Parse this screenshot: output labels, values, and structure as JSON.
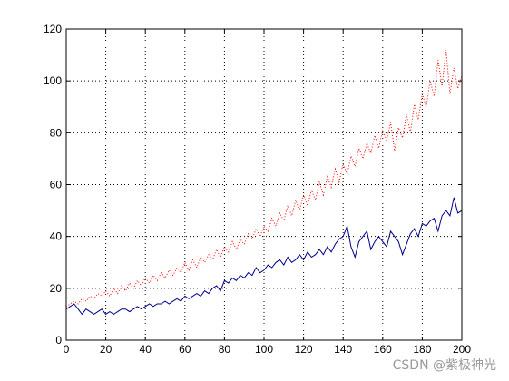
{
  "watermark": "CSDN @紫极神光",
  "chart_data": {
    "type": "line",
    "title": "",
    "xlabel": "",
    "ylabel": "",
    "xlim": [
      0,
      200
    ],
    "ylim": [
      0,
      120
    ],
    "xticks": [
      0,
      20,
      40,
      60,
      80,
      100,
      120,
      140,
      160,
      180,
      200
    ],
    "yticks": [
      0,
      20,
      40,
      60,
      80,
      100,
      120
    ],
    "grid": true,
    "series": [
      {
        "style": "dotted",
        "color": "#ff0000",
        "x": [
          0,
          2,
          4,
          6,
          8,
          10,
          12,
          14,
          16,
          18,
          20,
          22,
          24,
          26,
          28,
          30,
          32,
          34,
          36,
          38,
          40,
          42,
          44,
          46,
          48,
          50,
          52,
          54,
          56,
          58,
          60,
          62,
          64,
          66,
          68,
          70,
          72,
          74,
          76,
          78,
          80,
          82,
          84,
          86,
          88,
          90,
          92,
          94,
          96,
          98,
          100,
          102,
          104,
          106,
          108,
          110,
          112,
          114,
          116,
          118,
          120,
          122,
          124,
          126,
          128,
          130,
          132,
          134,
          136,
          138,
          140,
          142,
          144,
          146,
          148,
          150,
          152,
          154,
          156,
          158,
          160,
          162,
          164,
          166,
          168,
          170,
          172,
          174,
          176,
          178,
          180,
          182,
          184,
          186,
          188,
          190,
          192,
          194,
          196,
          198,
          200
        ],
        "y": [
          13,
          14,
          15,
          14,
          16,
          15,
          17,
          16,
          18,
          17,
          19,
          17,
          20,
          18,
          21,
          19,
          22,
          20,
          23,
          21,
          24,
          22,
          25,
          23,
          26,
          24,
          27,
          25,
          28,
          26,
          30,
          27,
          31,
          28,
          32,
          30,
          33,
          31,
          35,
          32,
          36,
          34,
          38,
          35,
          39,
          37,
          41,
          39,
          43,
          40,
          44,
          42,
          47,
          44,
          49,
          46,
          52,
          48,
          54,
          50,
          56,
          52,
          58,
          54,
          61,
          56,
          63,
          59,
          66,
          61,
          68,
          64,
          71,
          67,
          74,
          70,
          76,
          72,
          79,
          74,
          81,
          77,
          84,
          73,
          82,
          78,
          87,
          80,
          91,
          85,
          95,
          90,
          100,
          94,
          108,
          98,
          112,
          95,
          105,
          97,
          102
        ]
      },
      {
        "style": "solid",
        "color": "#00008b",
        "x": [
          0,
          2,
          4,
          6,
          8,
          10,
          12,
          14,
          16,
          18,
          20,
          22,
          24,
          26,
          28,
          30,
          32,
          34,
          36,
          38,
          40,
          42,
          44,
          46,
          48,
          50,
          52,
          54,
          56,
          58,
          60,
          62,
          64,
          66,
          68,
          70,
          72,
          74,
          76,
          78,
          80,
          82,
          84,
          86,
          88,
          90,
          92,
          94,
          96,
          98,
          100,
          102,
          104,
          106,
          108,
          110,
          112,
          114,
          116,
          118,
          120,
          122,
          124,
          126,
          128,
          130,
          132,
          134,
          136,
          138,
          140,
          142,
          144,
          146,
          148,
          150,
          152,
          154,
          156,
          158,
          160,
          162,
          164,
          166,
          168,
          170,
          172,
          174,
          176,
          178,
          180,
          182,
          184,
          186,
          188,
          190,
          192,
          194,
          196,
          198,
          200
        ],
        "y": [
          12,
          13,
          14,
          12,
          10,
          12,
          11,
          10,
          11,
          12,
          10,
          11,
          10,
          11,
          12,
          12,
          11,
          12,
          13,
          12,
          13,
          14,
          13,
          14,
          14,
          15,
          14,
          15,
          16,
          15,
          17,
          16,
          17,
          18,
          17,
          19,
          18,
          20,
          21,
          19,
          23,
          22,
          24,
          23,
          25,
          24,
          26,
          25,
          28,
          26,
          27,
          29,
          28,
          30,
          31,
          29,
          32,
          30,
          31,
          33,
          31,
          34,
          32,
          33,
          35,
          33,
          36,
          34,
          37,
          39,
          40,
          44,
          36,
          32,
          38,
          40,
          42,
          35,
          38,
          40,
          38,
          36,
          42,
          40,
          38,
          33,
          37,
          41,
          43,
          40,
          45,
          44,
          46,
          47,
          42,
          48,
          50,
          48,
          55,
          49,
          50
        ]
      }
    ]
  }
}
